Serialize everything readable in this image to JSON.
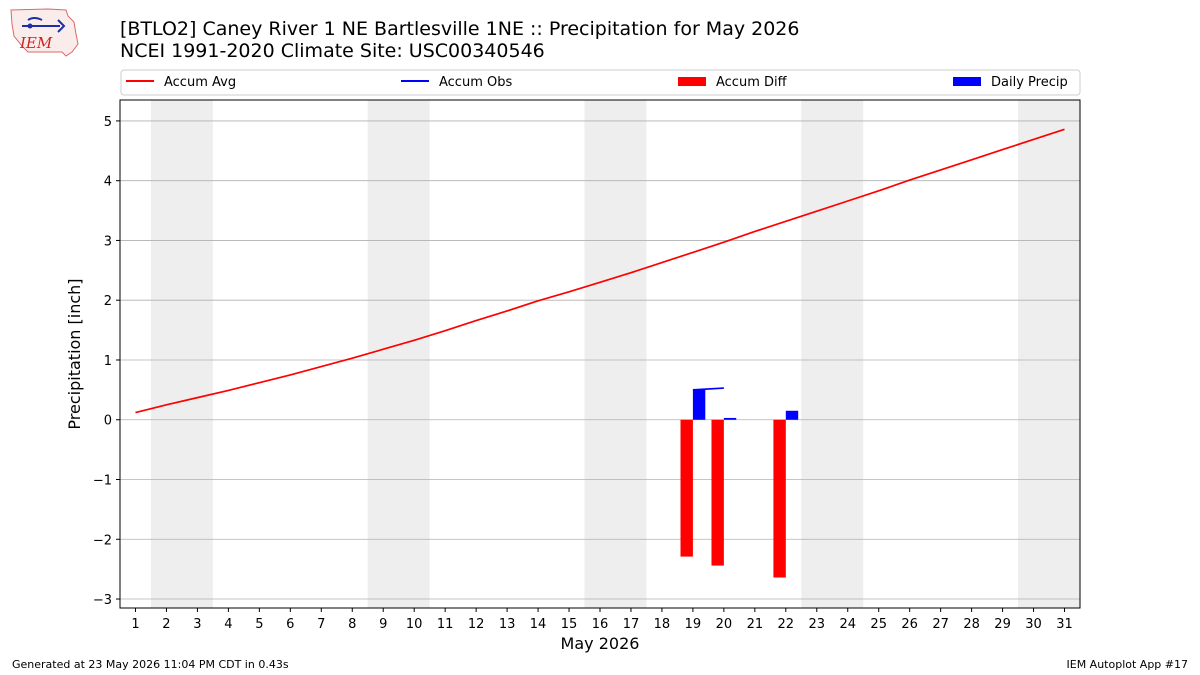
{
  "header": {
    "logo_text": "IEM",
    "title": "[BTLO2] Caney River 1 NE Bartlesville 1NE :: Precipitation for May 2026",
    "subtitle": "NCEI 1991-2020 Climate Site: USC00340546"
  },
  "footer": {
    "generated": "Generated at 23 May 2026 11:04 PM CDT in 0.43s",
    "app": "IEM Autoplot App #17"
  },
  "colors": {
    "accum_avg": "#ff0000",
    "accum_obs": "#0000ff",
    "accum_diff": "#ff0000",
    "daily_precip": "#0000ff",
    "weekend_shade": "#eeeeee",
    "grid": "#b0b0b0"
  },
  "chart_data": {
    "type": "bar",
    "title": "[BTLO2] Caney River 1 NE Bartlesville 1NE :: Precipitation for May 2026",
    "subtitle": "NCEI 1991-2020 Climate Site: USC00340546",
    "xlabel": "May 2026",
    "ylabel": "Precipitation [inch]",
    "xlim": [
      0.5,
      31.5
    ],
    "ylim": [
      -3.15,
      5.35
    ],
    "x_ticks": [
      1,
      2,
      3,
      4,
      5,
      6,
      7,
      8,
      9,
      10,
      11,
      12,
      13,
      14,
      15,
      16,
      17,
      18,
      19,
      20,
      21,
      22,
      23,
      24,
      25,
      26,
      27,
      28,
      29,
      30,
      31
    ],
    "x_tick_labels": [
      "1",
      "2",
      "3",
      "4",
      "5",
      "6",
      "7",
      "8",
      "9",
      "10",
      "11",
      "12",
      "13",
      "14",
      "15",
      "16",
      "17",
      "18",
      "19",
      "20",
      "21",
      "22",
      "23",
      "24",
      "25",
      "26",
      "27",
      "28",
      "29",
      "30",
      "31"
    ],
    "y_ticks": [
      -3,
      -2,
      -1,
      0,
      1,
      2,
      3,
      4,
      5
    ],
    "y_tick_labels": [
      "−3",
      "−2",
      "−1",
      "0",
      "1",
      "2",
      "3",
      "4",
      "5"
    ],
    "grid": "horizontal",
    "legend_position": "top",
    "weekend_spans": [
      [
        1.5,
        3.5
      ],
      [
        8.5,
        10.5
      ],
      [
        15.5,
        17.5
      ],
      [
        22.5,
        24.5
      ],
      [
        29.5,
        31.5
      ]
    ],
    "series": [
      {
        "name": "Accum Avg",
        "kind": "line",
        "x": [
          1,
          2,
          3,
          4,
          5,
          6,
          7,
          8,
          9,
          10,
          11,
          12,
          13,
          14,
          15,
          16,
          17,
          18,
          19,
          20,
          21,
          22,
          23,
          24,
          25,
          26,
          27,
          28,
          29,
          30,
          31
        ],
        "values": [
          0.12,
          0.25,
          0.37,
          0.49,
          0.62,
          0.75,
          0.89,
          1.03,
          1.18,
          1.33,
          1.49,
          1.66,
          1.82,
          1.99,
          2.14,
          2.3,
          2.46,
          2.63,
          2.8,
          2.97,
          3.15,
          3.32,
          3.49,
          3.66,
          3.83,
          4.01,
          4.18,
          4.35,
          4.52,
          4.69,
          4.86
        ]
      },
      {
        "name": "Accum Obs",
        "kind": "line",
        "x": [
          19,
          20
        ],
        "values": [
          0.5,
          0.53
        ]
      },
      {
        "name": "Accum Diff",
        "kind": "bar",
        "x": [
          19,
          20,
          22
        ],
        "values": [
          -2.29,
          -2.44,
          -2.64
        ]
      },
      {
        "name": "Daily Precip",
        "kind": "bar",
        "x": [
          19,
          20,
          22
        ],
        "values": [
          0.5,
          0.03,
          0.15
        ]
      }
    ]
  }
}
